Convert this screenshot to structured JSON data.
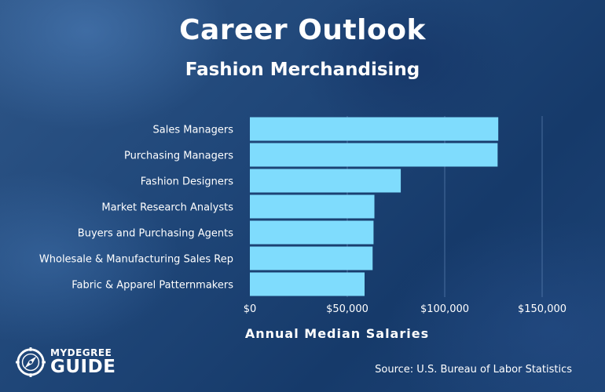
{
  "header": {
    "title": "Career Outlook",
    "subtitle": "Fashion Merchandising"
  },
  "chart_data": {
    "type": "bar",
    "orientation": "horizontal",
    "categories": [
      "Sales Managers",
      "Purchasing Managers",
      "Fashion Designers",
      "Market Research Analysts",
      "Buyers and Purchasing Agents",
      "Wholesale & Manufacturing Sales Rep",
      "Fabric & Apparel Patternmakers"
    ],
    "values": [
      127490,
      127150,
      77450,
      63920,
      63470,
      63000,
      58870
    ],
    "xlabel": "Annual Median Salaries",
    "xlim": [
      0,
      150000
    ],
    "xticks": [
      0,
      50000,
      100000,
      150000
    ],
    "xtick_labels": [
      "$0",
      "$50,000",
      "$100,000",
      "$150,000"
    ],
    "grid": "vertical",
    "bar_color": "#7fdcfd"
  },
  "footer": {
    "logo_top": "MYDEGREE",
    "logo_bottom": "GUIDE",
    "source": "Source: U.S. Bureau of Labor Statistics"
  },
  "colors": {
    "text": "#ffffff",
    "bar": "#7fdcfd",
    "grid": "#6a8fbf"
  }
}
